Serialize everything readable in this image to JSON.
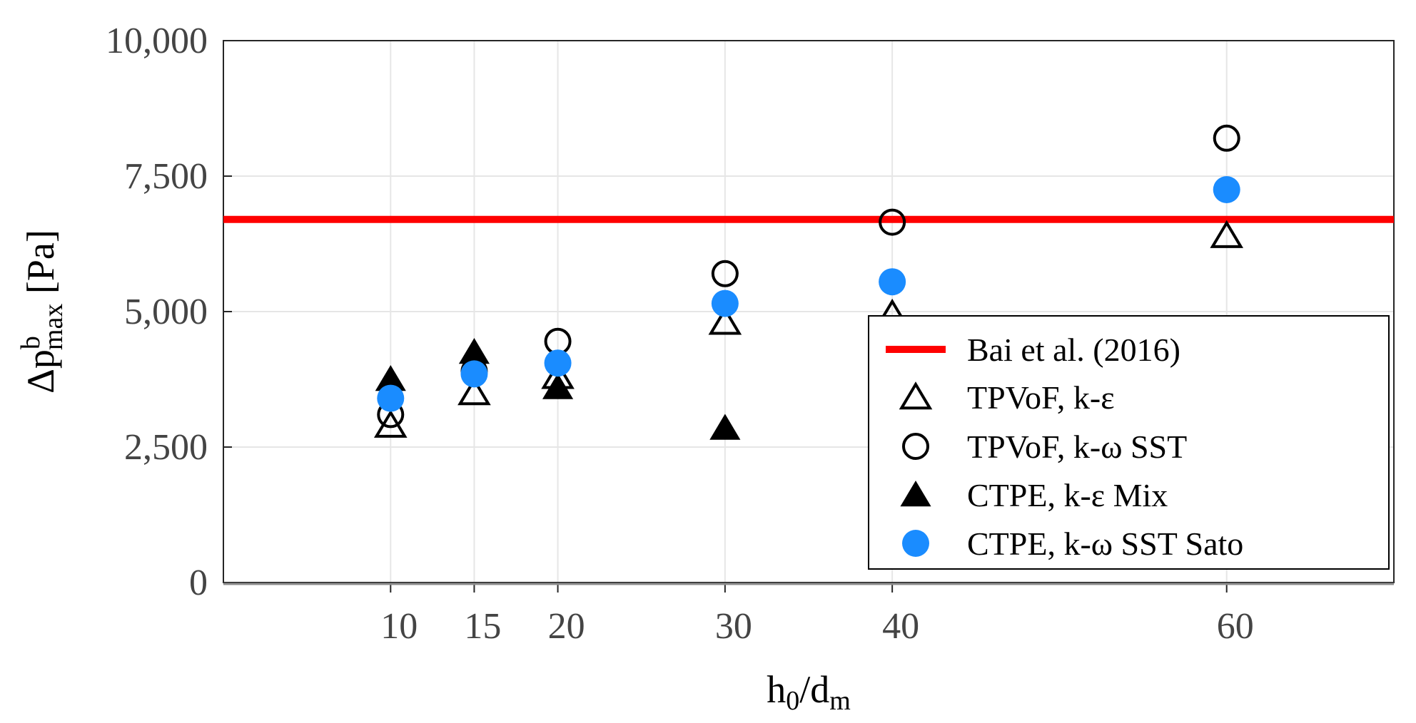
{
  "chart_data": {
    "type": "scatter",
    "title": "",
    "xlabel": {
      "main": "h",
      "sub1": "0",
      "sep": "/d",
      "sub2": "m"
    },
    "ylabel": {
      "delta": "Δp",
      "sup": "b",
      "sub": "max",
      "unit": " [Pa]"
    },
    "xlim": [
      0,
      70
    ],
    "ylim": [
      0,
      10000
    ],
    "x_ticks": [
      10,
      15,
      20,
      30,
      40,
      60
    ],
    "x_tick_labels": [
      "10",
      "15",
      "20",
      "30",
      "40",
      "60"
    ],
    "y_ticks": [
      0,
      2500,
      5000,
      7500,
      10000
    ],
    "y_tick_labels": [
      "0",
      "2,500",
      "5,000",
      "7,500",
      "10,000"
    ],
    "grid": true,
    "reference_line": {
      "name": "Bai et al. (2016)",
      "y": 6700,
      "color": "#ff0000"
    },
    "series": [
      {
        "name": "TPVoF, k-ε",
        "marker": "triangle-open",
        "color": "#000000",
        "points": [
          [
            10,
            2900
          ],
          [
            15,
            3500
          ],
          [
            20,
            3800
          ],
          [
            30,
            4800
          ],
          [
            40,
            4950
          ],
          [
            60,
            6400
          ]
        ]
      },
      {
        "name": "TPVoF, k-ω SST",
        "marker": "circle-open",
        "color": "#000000",
        "points": [
          [
            10,
            3100
          ],
          [
            15,
            3900
          ],
          [
            20,
            4450
          ],
          [
            30,
            5700
          ],
          [
            40,
            6650
          ],
          [
            60,
            8200
          ]
        ]
      },
      {
        "name": "CTPE,  k-ε Mix",
        "marker": "triangle-filled",
        "color": "#000000",
        "points": [
          [
            10,
            3750
          ],
          [
            15,
            4250
          ],
          [
            20,
            3600
          ],
          [
            30,
            2850
          ]
        ]
      },
      {
        "name": "CTPE,  k-ω SST Sato",
        "marker": "circle-filled",
        "color": "#1a8cff",
        "points": [
          [
            10,
            3400
          ],
          [
            15,
            3850
          ],
          [
            20,
            4050
          ],
          [
            30,
            5150
          ],
          [
            40,
            5550
          ],
          [
            60,
            7250
          ]
        ]
      }
    ],
    "legend_position": "bottom-right"
  }
}
